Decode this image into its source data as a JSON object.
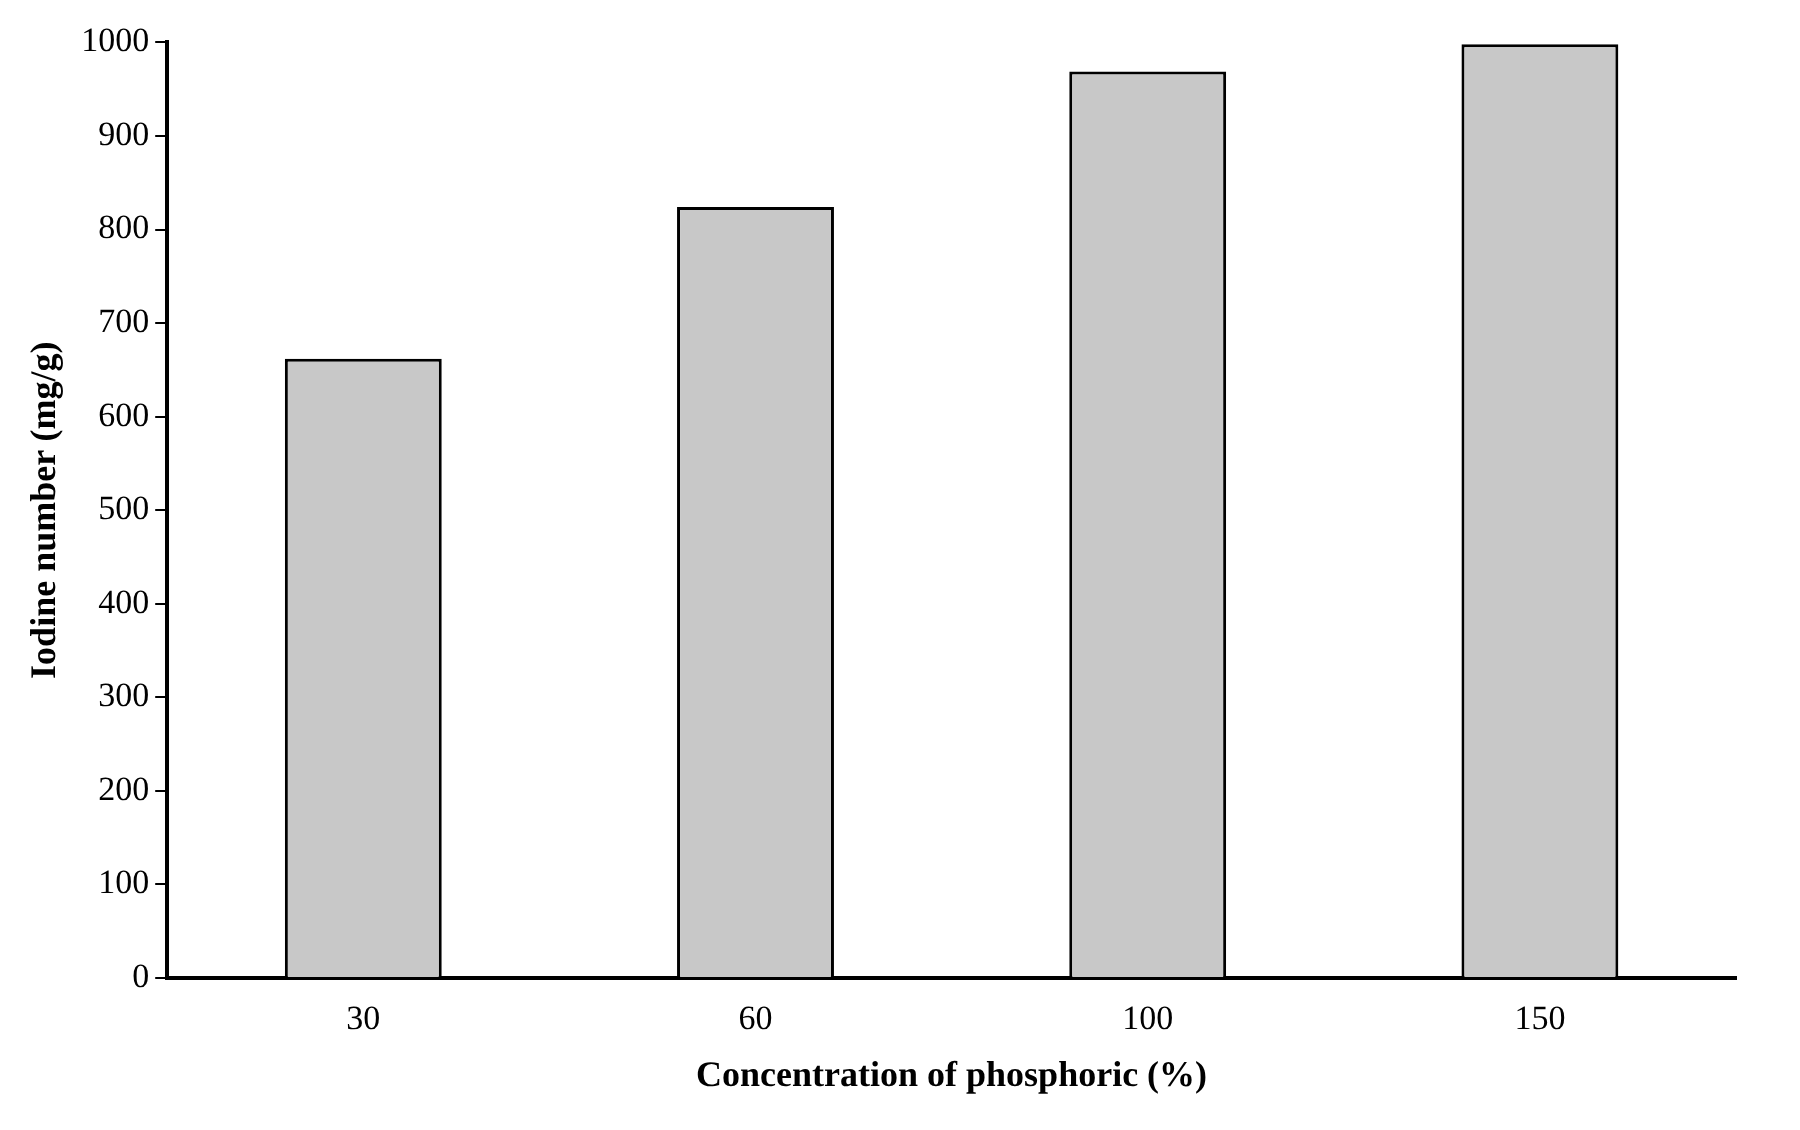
{
  "chart_data": {
    "type": "bar",
    "xlabel": "Concentration of phosphoric (%)",
    "ylabel": "Iodine number (mg/g)",
    "categories": [
      "30",
      "60",
      "100",
      "150"
    ],
    "values": [
      662,
      824,
      969,
      998
    ],
    "color": "#c8c8c8",
    "ylim": [
      0,
      1000
    ],
    "yticks": [
      0,
      100,
      200,
      300,
      400,
      500,
      600,
      700,
      800,
      900,
      1000
    ],
    "grid": false,
    "legend": false
  }
}
